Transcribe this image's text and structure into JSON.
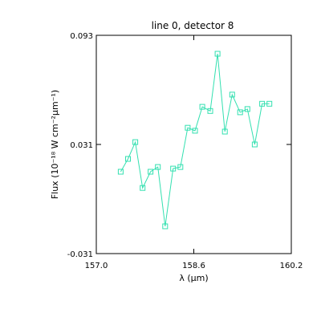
{
  "chart_data": {
    "type": "line",
    "title": "line 0, detector 8",
    "xlabel": "λ (μm)",
    "ylabel": "Flux (10⁻¹⁸ W cm⁻²μm⁻¹)",
    "xlim": [
      157.0,
      160.2
    ],
    "ylim": [
      -0.031,
      0.093
    ],
    "xticks": [
      "157.0",
      "158.6",
      "160.2"
    ],
    "yticks": [
      "-0.031",
      "0.031",
      "0.093"
    ],
    "grid": false,
    "series": [
      {
        "color": "#33e0b0",
        "marker": "square",
        "x": [
          157.4,
          157.52,
          157.64,
          157.76,
          157.89,
          158.01,
          158.13,
          158.26,
          158.38,
          158.5,
          158.62,
          158.74,
          158.87,
          158.99,
          159.11,
          159.23,
          159.36,
          159.48,
          159.6,
          159.72,
          159.84
        ],
        "y": [
          0.0155,
          0.0228,
          0.0323,
          0.0063,
          0.0155,
          0.0182,
          -0.0155,
          0.0173,
          0.0182,
          0.0405,
          0.0388,
          0.0524,
          0.05,
          0.0825,
          0.0383,
          0.0593,
          0.0493,
          0.0511,
          0.031,
          0.0541,
          0.0541
        ]
      }
    ]
  }
}
